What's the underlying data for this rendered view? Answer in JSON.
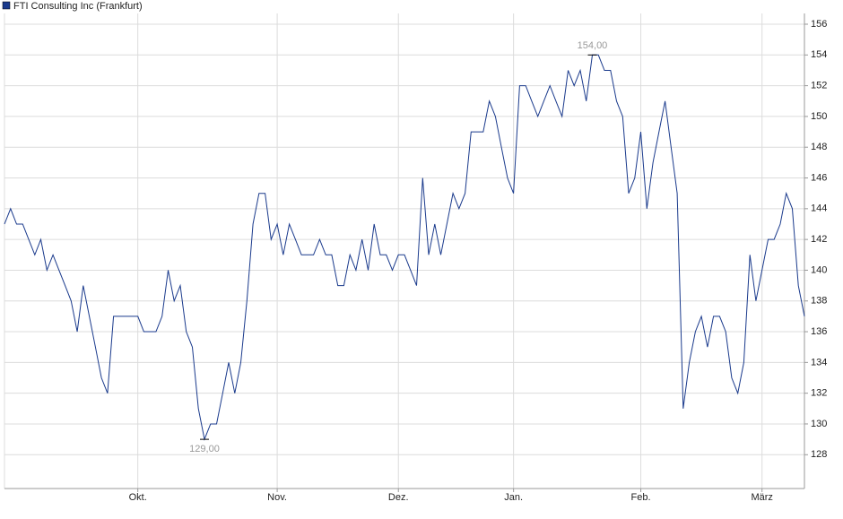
{
  "chart_data": {
    "type": "line",
    "categories": [
      null,
      null,
      null,
      null,
      null,
      null,
      null,
      null,
      null,
      null,
      null,
      null,
      null,
      null,
      null,
      null,
      null,
      null,
      null,
      null,
      null,
      null,
      "Okt.",
      null,
      null,
      null,
      null,
      null,
      null,
      null,
      null,
      null,
      null,
      null,
      null,
      null,
      null,
      null,
      null,
      null,
      null,
      null,
      null,
      null,
      null,
      "Nov.",
      null,
      null,
      null,
      null,
      null,
      null,
      null,
      null,
      null,
      null,
      null,
      null,
      null,
      null,
      null,
      null,
      null,
      null,
      null,
      "Dez.",
      null,
      null,
      null,
      null,
      null,
      null,
      null,
      null,
      null,
      null,
      null,
      null,
      null,
      null,
      null,
      null,
      null,
      null,
      "Jan.",
      null,
      null,
      null,
      null,
      null,
      null,
      null,
      null,
      null,
      null,
      null,
      null,
      null,
      null,
      null,
      null,
      null,
      null,
      null,
      null,
      "Feb.",
      null,
      null,
      null,
      null,
      null,
      null,
      null,
      null,
      null,
      null,
      null,
      null,
      null,
      null,
      null,
      null,
      null,
      null,
      null,
      "März",
      null,
      null,
      null,
      null,
      null,
      null,
      null
    ],
    "series": [
      {
        "name": "FTI Consulting Inc (Frankfurt)",
        "color": "#1a3a8c",
        "values": [
          143,
          144,
          143,
          143,
          142,
          141,
          142,
          140,
          141,
          140,
          139,
          138,
          136,
          139,
          137,
          135,
          133,
          132,
          137,
          137,
          137,
          137,
          137,
          136,
          136,
          136,
          137,
          140,
          138,
          139,
          136,
          135,
          131,
          129,
          130,
          130,
          132,
          134,
          132,
          134,
          138,
          143,
          145,
          145,
          142,
          143,
          141,
          143,
          142,
          141,
          141,
          141,
          142,
          141,
          141,
          139,
          139,
          141,
          140,
          142,
          140,
          143,
          141,
          141,
          140,
          141,
          141,
          140,
          139,
          146,
          141,
          143,
          141,
          143,
          145,
          144,
          145,
          149,
          149,
          149,
          151,
          150,
          148,
          146,
          145,
          152,
          152,
          151,
          150,
          151,
          152,
          151,
          150,
          153,
          152,
          153,
          151,
          154,
          154,
          153,
          153,
          151,
          150,
          145,
          146,
          149,
          144,
          147,
          149,
          151,
          148,
          145,
          131,
          134,
          136,
          137,
          135,
          137,
          137,
          136,
          133,
          132,
          134,
          141,
          138,
          140,
          142,
          142,
          143,
          145,
          144,
          139,
          137
        ],
        "value_labels": [
          null,
          null,
          null,
          null,
          null,
          null,
          null,
          null,
          null,
          null,
          null,
          null,
          null,
          null,
          null,
          null,
          null,
          null,
          null,
          null,
          null,
          null,
          null,
          null,
          null,
          null,
          null,
          null,
          null,
          null,
          null,
          null,
          null,
          "129,00",
          null,
          null,
          null,
          null,
          null,
          null,
          null,
          null,
          null,
          null,
          null,
          null,
          null,
          null,
          null,
          null,
          null,
          null,
          null,
          null,
          null,
          null,
          null,
          null,
          null,
          null,
          null,
          null,
          null,
          null,
          null,
          null,
          null,
          null,
          null,
          null,
          null,
          null,
          null,
          null,
          null,
          null,
          null,
          null,
          null,
          null,
          null,
          null,
          null,
          null,
          null,
          null,
          null,
          null,
          null,
          null,
          null,
          null,
          null,
          null,
          null,
          null,
          null,
          "154,00",
          null,
          null,
          null,
          null,
          null,
          null,
          null,
          null,
          null,
          null,
          null,
          null,
          null,
          null,
          null,
          null,
          null,
          null,
          null,
          null,
          null,
          null,
          null,
          null,
          null,
          null,
          null,
          null,
          null,
          null,
          null,
          null,
          null,
          null,
          null
        ]
      }
    ],
    "ylim": [
      125.8,
      156.7
    ],
    "yticks": [
      128,
      130,
      132,
      134,
      136,
      138,
      140,
      142,
      144,
      146,
      148,
      150,
      152,
      154,
      156
    ],
    "grid": true,
    "legend": "top-left"
  }
}
